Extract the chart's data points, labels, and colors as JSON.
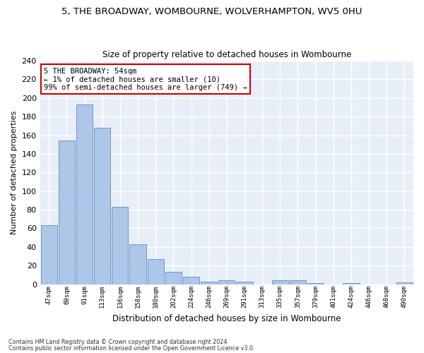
{
  "title_line1": "5, THE BROADWAY, WOMBOURNE, WOLVERHAMPTON, WV5 0HU",
  "title_line2": "Size of property relative to detached houses in Wombourne",
  "xlabel": "Distribution of detached houses by size in Wombourne",
  "ylabel": "Number of detached properties",
  "categories": [
    "47sqm",
    "69sqm",
    "91sqm",
    "113sqm",
    "136sqm",
    "158sqm",
    "180sqm",
    "202sqm",
    "224sqm",
    "246sqm",
    "269sqm",
    "291sqm",
    "313sqm",
    "335sqm",
    "357sqm",
    "379sqm",
    "401sqm",
    "424sqm",
    "446sqm",
    "468sqm",
    "490sqm"
  ],
  "values": [
    63,
    154,
    193,
    168,
    83,
    43,
    27,
    13,
    8,
    3,
    4,
    3,
    0,
    4,
    4,
    1,
    0,
    1,
    0,
    0,
    2
  ],
  "bar_color": "#aec6e8",
  "bar_edge_color": "#5a8fc2",
  "background_color": "#e8eef8",
  "grid_color": "#ffffff",
  "annotation_text": "5 THE BROADWAY: 54sqm\n← 1% of detached houses are smaller (10)\n99% of semi-detached houses are larger (749) →",
  "annotation_box_color": "#ffffff",
  "annotation_box_edge": "#cc0000",
  "ylim": [
    0,
    240
  ],
  "yticks": [
    0,
    20,
    40,
    60,
    80,
    100,
    120,
    140,
    160,
    180,
    200,
    220,
    240
  ],
  "footnote1": "Contains HM Land Registry data © Crown copyright and database right 2024.",
  "footnote2": "Contains public sector information licensed under the Open Government Licence v3.0."
}
